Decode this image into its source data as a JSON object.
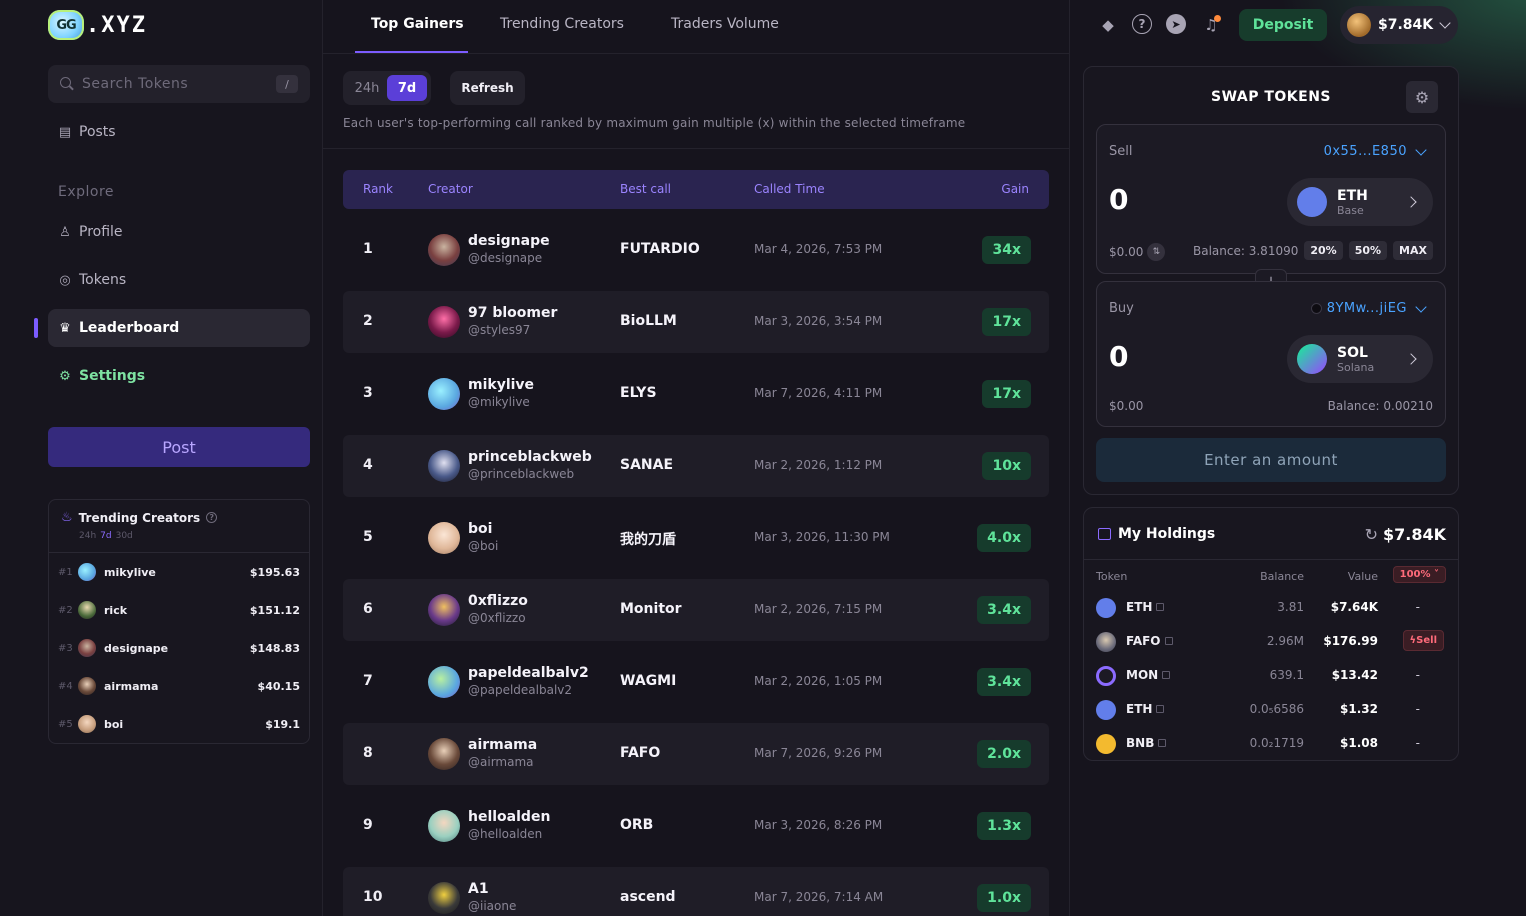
{
  "brand": {
    "logo_mark": "GG",
    "logo_text": ".XYZ"
  },
  "search": {
    "placeholder": "Search Tokens",
    "shortcut": "/"
  },
  "nav": {
    "posts": "Posts",
    "explore": "Explore",
    "profile": "Profile",
    "tokens": "Tokens",
    "leaderboard": "Leaderboard",
    "settings": "Settings",
    "post_button": "Post"
  },
  "trending_sidebar": {
    "title": "Trending Creators",
    "timeframes": [
      "24h",
      "7d",
      "30d"
    ],
    "active_timeframe": "7d",
    "items": [
      {
        "rank": "#1",
        "name": "mikylive",
        "value": "$195.63"
      },
      {
        "rank": "#2",
        "name": "rick",
        "value": "$151.12"
      },
      {
        "rank": "#3",
        "name": "designape",
        "value": "$148.83"
      },
      {
        "rank": "#4",
        "name": "airmama",
        "value": "$40.15"
      },
      {
        "rank": "#5",
        "name": "boi",
        "value": "$19.1"
      }
    ]
  },
  "tabs": {
    "top_gainers": "Top Gainers",
    "trending_creators": "Trending Creators",
    "traders_volume": "Traders Volume",
    "active": "Top Gainers"
  },
  "timeframe": {
    "h24": "24h",
    "d7": "7d",
    "active": "7d",
    "refresh": "Refresh"
  },
  "description": "Each user's top-performing call ranked by maximum gain multiple (x) within the selected timeframe",
  "table": {
    "columns": {
      "rank": "Rank",
      "creator": "Creator",
      "best_call": "Best call",
      "called_time": "Called Time",
      "gain": "Gain"
    },
    "rows": [
      {
        "rank": "1",
        "name": "designape",
        "handle": "@designape",
        "call": "FUTARDIO",
        "time": "Mar 4, 2026, 7:53 PM",
        "gain": "34x"
      },
      {
        "rank": "2",
        "name": "97 bloomer",
        "handle": "@styles97",
        "call": "BioLLM",
        "time": "Mar 3, 2026, 3:54 PM",
        "gain": "17x"
      },
      {
        "rank": "3",
        "name": "mikylive",
        "handle": "@mikylive",
        "call": "ELYS",
        "time": "Mar 7, 2026, 4:11 PM",
        "gain": "17x"
      },
      {
        "rank": "4",
        "name": "princeblackweb",
        "handle": "@princeblackweb",
        "call": "SANAE",
        "time": "Mar 2, 2026, 1:12 PM",
        "gain": "10x"
      },
      {
        "rank": "5",
        "name": "boi",
        "handle": "@boi",
        "call": "我的刀盾",
        "time": "Mar 3, 2026, 11:30 PM",
        "gain": "4.0x"
      },
      {
        "rank": "6",
        "name": "0xflizzo",
        "handle": "@0xflizzo",
        "call": "Monitor",
        "time": "Mar 2, 2026, 7:15 PM",
        "gain": "3.4x"
      },
      {
        "rank": "7",
        "name": "papeldealbalv2",
        "handle": "@papeldealbalv2",
        "call": "WAGMI",
        "time": "Mar 2, 2026, 1:05 PM",
        "gain": "3.4x"
      },
      {
        "rank": "8",
        "name": "airmama",
        "handle": "@airmama",
        "call": "FAFO",
        "time": "Mar 7, 2026, 9:26 PM",
        "gain": "2.0x"
      },
      {
        "rank": "9",
        "name": "helloalden",
        "handle": "@helloalden",
        "call": "ORB",
        "time": "Mar 3, 2026, 8:26 PM",
        "gain": "1.3x"
      },
      {
        "rank": "10",
        "name": "A1",
        "handle": "@iiaone",
        "call": "ascend",
        "time": "Mar 7, 2026, 7:14 AM",
        "gain": "1.0x"
      }
    ]
  },
  "topbar": {
    "deposit": "Deposit",
    "wallet_value": "$7.84K"
  },
  "swap": {
    "title": "SWAP TOKENS",
    "sell": {
      "label": "Sell",
      "address": "0x55...E850",
      "amount": "0",
      "symbol": "ETH",
      "network": "Base",
      "usd": "$0.00",
      "balance": "Balance: 3.81090",
      "pct_20": "20%",
      "pct_50": "50%",
      "max": "MAX"
    },
    "buy": {
      "label": "Buy",
      "address": "8YMw...jiEG",
      "amount": "0",
      "symbol": "SOL",
      "network": "Solana",
      "usd": "$0.00",
      "balance": "Balance: 0.00210"
    },
    "enter_amount": "Enter an amount"
  },
  "holdings": {
    "title": "My Holdings",
    "total": "$7.84K",
    "columns": {
      "token": "Token",
      "balance": "Balance",
      "value": "Value",
      "pct": "100%"
    },
    "rows": [
      {
        "symbol": "ETH",
        "balance": "3.81",
        "value": "$7.64K",
        "action": "-"
      },
      {
        "symbol": "FAFO",
        "balance": "2.96M",
        "value": "$176.99",
        "action": "Sell"
      },
      {
        "symbol": "MON",
        "balance": "639.1",
        "value": "$13.42",
        "action": "-"
      },
      {
        "symbol": "ETH",
        "balance": "0.0₅6586",
        "value": "$1.32",
        "action": "-"
      },
      {
        "symbol": "BNB",
        "balance": "0.0₂1719",
        "value": "$1.08",
        "action": "-"
      }
    ]
  },
  "colors": {
    "accent": "#7c5cff",
    "gain_green": "#5fe39a",
    "link_blue": "#4aa3ff",
    "sell_red": "#ff6b7a"
  }
}
